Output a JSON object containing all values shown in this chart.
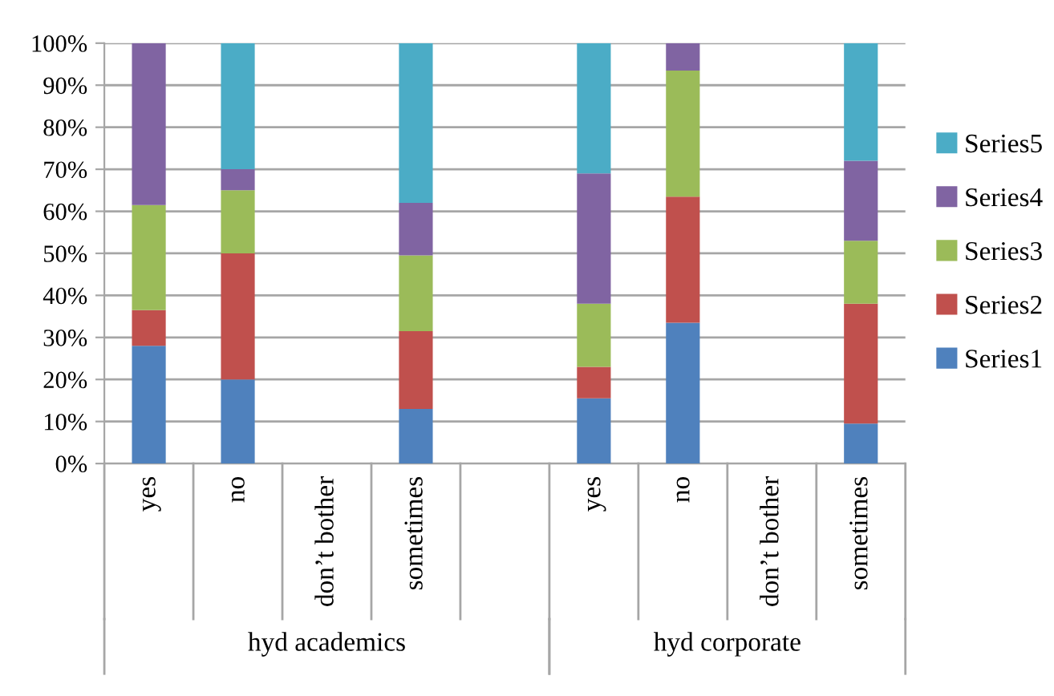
{
  "chart_data": {
    "type": "bar",
    "stacked": true,
    "categories": [
      "yes",
      "no",
      "don’t bother",
      "sometimes",
      null,
      "yes",
      "no",
      "don’t bother",
      "sometimes"
    ],
    "series": [
      {
        "name": "Series1",
        "color": "#4f81bd",
        "values": [
          28,
          20,
          null,
          13,
          null,
          15.5,
          33.5,
          null,
          9.5
        ]
      },
      {
        "name": "Series2",
        "color": "#c0504d",
        "values": [
          8.5,
          30,
          null,
          18.5,
          null,
          7.5,
          30,
          null,
          28.5
        ]
      },
      {
        "name": "Series3",
        "color": "#9bbb59",
        "values": [
          25,
          15,
          null,
          18,
          null,
          15,
          30,
          null,
          15
        ]
      },
      {
        "name": "Series4",
        "color": "#8064a2",
        "values": [
          38.5,
          5,
          null,
          12.5,
          null,
          31,
          6.5,
          null,
          19
        ]
      },
      {
        "name": "Series5",
        "color": "#4bacc6",
        "values": [
          0,
          30,
          null,
          38,
          null,
          31,
          0,
          null,
          28
        ]
      }
    ],
    "annotations": [
      "hyd academics",
      "hyd corporate"
    ],
    "ylim": [
      0,
      100
    ],
    "yticks": [
      {
        "value": 0,
        "label": "0%"
      },
      {
        "value": 10,
        "label": "10%"
      },
      {
        "value": 20,
        "label": "20%"
      },
      {
        "value": 30,
        "label": "30%"
      },
      {
        "value": 40,
        "label": "40%"
      },
      {
        "value": 50,
        "label": "50%"
      },
      {
        "value": 60,
        "label": "60%"
      },
      {
        "value": 70,
        "label": "70%"
      },
      {
        "value": 80,
        "label": "80%"
      },
      {
        "value": 90,
        "label": "90%"
      },
      {
        "value": 100,
        "label": "100%"
      }
    ],
    "grid": "y",
    "legend": "right"
  }
}
